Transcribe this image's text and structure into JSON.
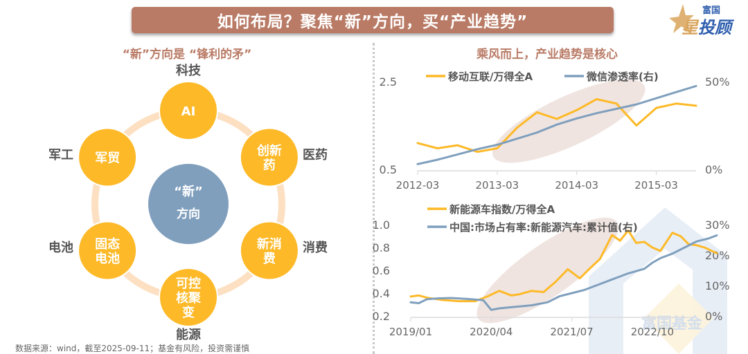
{
  "header": {
    "title": "如何布局？聚焦“新”方向，买“产业趋势”",
    "logo_sub": "富国",
    "logo_main_star": "星",
    "logo_main_rest": "投顾"
  },
  "left": {
    "title": "“新”方向是 “锋利的矛”",
    "center": {
      "line1": "“新”",
      "line2": "方向"
    },
    "nodes": [
      {
        "text": [
          "AI"
        ],
        "category": "科技"
      },
      {
        "text": [
          "创新",
          "药"
        ],
        "category": "医药"
      },
      {
        "text": [
          "新消",
          "费"
        ],
        "category": "消费"
      },
      {
        "text": [
          "可控",
          "核聚",
          "变"
        ],
        "category": "能源"
      },
      {
        "text": [
          "固态",
          "电池"
        ],
        "category": "电池"
      },
      {
        "text": [
          "军贸"
        ],
        "category": "军工"
      }
    ],
    "colors": {
      "node": "#fdb927",
      "center": "#809fbd",
      "ring": "#fde0c2",
      "label": "#555555"
    }
  },
  "right_title": "乘风而上，产业趋势是核心",
  "footer": {
    "source": "数据来源：wind，截至2025-09-11；基金有风险，投资需谨慎"
  },
  "watermark": "富国基金",
  "chart_data": [
    {
      "type": "line",
      "title": "",
      "x_ticks": [
        "2012-03",
        "2013-03",
        "2014-03",
        "2015-03"
      ],
      "x_range": [
        2012.0,
        2015.5
      ],
      "ylim": [
        0.5,
        2.5
      ],
      "y_ticks": [
        "0.5",
        "2.5"
      ],
      "y2lim": [
        0,
        50
      ],
      "y2_ticks": [
        "0%",
        "50%"
      ],
      "legend": "top",
      "grid": false,
      "highlight_ellipse": {
        "x_center": 2013.9,
        "y_center": 1.6,
        "note": "shaded trend period"
      },
      "series": [
        {
          "name": "移动互联/万得全A",
          "axis": "left",
          "color": "#fdb927",
          "x": [
            2012.0,
            2012.25,
            2012.5,
            2012.75,
            2013.0,
            2013.25,
            2013.5,
            2013.75,
            2014.0,
            2014.25,
            2014.5,
            2014.75,
            2015.0,
            2015.25,
            2015.5
          ],
          "y": [
            1.1,
            0.98,
            1.05,
            0.9,
            0.98,
            1.45,
            1.8,
            1.65,
            1.85,
            2.1,
            2.0,
            1.5,
            1.9,
            2.0,
            1.95
          ]
        },
        {
          "name": "微信渗透率(右)",
          "axis": "right",
          "color": "#7f9fbd",
          "x": [
            2012.0,
            2012.25,
            2012.5,
            2012.75,
            2013.0,
            2013.25,
            2013.5,
            2013.75,
            2014.0,
            2014.25,
            2014.5,
            2014.75,
            2015.0,
            2015.25,
            2015.5
          ],
          "y": [
            3,
            5.5,
            8.5,
            11.5,
            14,
            17.5,
            21,
            25.5,
            29,
            32,
            34.5,
            37,
            40.5,
            44,
            47.5
          ]
        }
      ]
    },
    {
      "type": "line",
      "title": "",
      "x_ticks": [
        "2019/01",
        "2020/04",
        "2021/07",
        "2022/10"
      ],
      "x_range": [
        2019.0,
        2022.5
      ],
      "ylim": [
        0.2,
        1.0
      ],
      "y_ticks": [
        "0.2",
        "0.4",
        "0.6",
        "0.8",
        "1.0"
      ],
      "y2lim": [
        0,
        30
      ],
      "y2_ticks": [
        "0%",
        "10%",
        "20%",
        "30%"
      ],
      "legend": "top",
      "grid": false,
      "highlight_ellipse": {
        "x_center": 2020.7,
        "y_center": 0.6,
        "note": "shaded trend period"
      },
      "series": [
        {
          "name": "新能源车指数/万得全A",
          "axis": "left",
          "color": "#fdb927",
          "x": [
            2019.0,
            2019.1,
            2019.2,
            2019.4,
            2019.6,
            2019.8,
            2019.95,
            2020.1,
            2020.25,
            2020.35,
            2020.5,
            2020.65,
            2020.8,
            2020.95,
            2021.1,
            2021.2,
            2021.35,
            2021.5,
            2021.6,
            2021.7,
            2021.8,
            2021.9,
            2022.0,
            2022.1,
            2022.25,
            2022.35,
            2022.45,
            2022.55,
            2022.65,
            2022.8
          ],
          "y": [
            0.37,
            0.38,
            0.36,
            0.34,
            0.33,
            0.33,
            0.37,
            0.42,
            0.38,
            0.39,
            0.42,
            0.41,
            0.5,
            0.61,
            0.53,
            0.6,
            0.7,
            0.91,
            0.86,
            0.95,
            0.84,
            0.85,
            0.8,
            0.77,
            0.93,
            0.9,
            0.83,
            0.82,
            0.8,
            0.75
          ]
        },
        {
          "name": "中国:市场占有率:新能源汽车:累计值(右)",
          "axis": "right",
          "color": "#7f9fbd",
          "x": [
            2019.0,
            2019.1,
            2019.2,
            2019.35,
            2019.5,
            2019.7,
            2019.9,
            2020.0,
            2020.1,
            2020.3,
            2020.5,
            2020.7,
            2020.85,
            2021.0,
            2021.15,
            2021.3,
            2021.5,
            2021.7,
            2021.9,
            2022.0,
            2022.1,
            2022.25,
            2022.4,
            2022.55,
            2022.7,
            2022.8
          ],
          "y": [
            4.5,
            4.2,
            5.5,
            5.8,
            5.9,
            5.6,
            5.2,
            2.0,
            2.5,
            3.0,
            3.5,
            4.5,
            6.5,
            7.5,
            8.5,
            10.0,
            12.0,
            14.0,
            15.5,
            17.5,
            19.0,
            20.5,
            22.5,
            24.5,
            25.5,
            26.5
          ]
        }
      ]
    }
  ]
}
